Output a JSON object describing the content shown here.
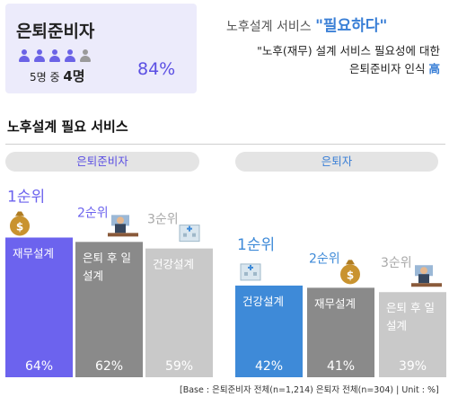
{
  "summary": {
    "group": "은퇴준비자",
    "ratio_prefix": "5명 중 ",
    "ratio_count": "4명",
    "percent": "84%",
    "headline_main": "노후설계 서비스 ",
    "headline_em": "\"필요하다\"",
    "desc_line1": "\"노후(재무) 설계 서비스 필요성에 대한",
    "desc_line2_main": "은퇴준비자 인식 ",
    "desc_line2_em": "高",
    "icons": [
      "person-icon",
      "person-icon",
      "person-icon",
      "person-icon",
      "person-icon"
    ],
    "icon_colors": [
      "#6b63e6",
      "#6b63e6",
      "#6b63e6",
      "#6b63e6",
      "#9a9a9a"
    ]
  },
  "section_title": "노후설계 필요 서비스",
  "colors": {
    "purple": "#6c63ee",
    "blue": "#3e8ad8",
    "dark_gray": "#8a8a8a",
    "light_gray": "#c9c9c9"
  },
  "chart_data": [
    {
      "type": "bar",
      "title": "은퇴준비자",
      "categories": [
        "재무설계",
        "은퇴 후 일 설계",
        "건강설계"
      ],
      "ranks": [
        "1순위",
        "2순위",
        "3순위"
      ],
      "values": [
        64,
        62,
        59
      ],
      "value_labels": [
        "64%",
        "62%",
        "59%"
      ],
      "icons": [
        "money-bag-icon",
        "office-worker-icon",
        "hospital-icon"
      ]
    },
    {
      "type": "bar",
      "title": "은퇴자",
      "categories": [
        "건강설계",
        "재무설계",
        "은퇴 후 일 설계"
      ],
      "ranks": [
        "1순위",
        "2순위",
        "3순위"
      ],
      "values": [
        42,
        41,
        39
      ],
      "value_labels": [
        "42%",
        "41%",
        "39%"
      ],
      "icons": [
        "hospital-icon",
        "money-bag-icon",
        "office-worker-icon"
      ]
    }
  ],
  "base_note": "[Base : 은퇴준비자 전체(n=1,214) 은퇴자 전체(n=304) | Unit : %]"
}
